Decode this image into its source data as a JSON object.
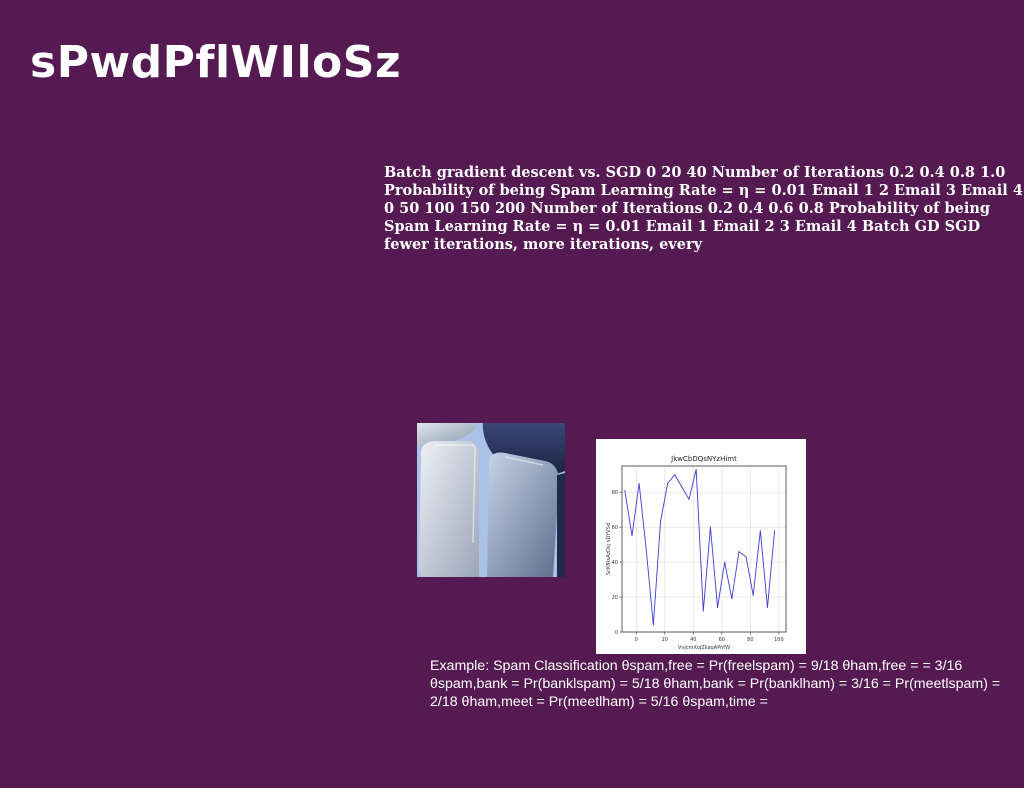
{
  "page": {
    "title": "sPwdPflWIloSz",
    "paragraph1": "Batch gradient descent vs. SGD 0 20 40 Number of Iterations 0.2 0.4 0.8 1.0 Probability of being Spam Learning Rate = η = 0.01 Email 1 2 Email 3 Email 4 0 50 100 150 200 Number of Iterations 0.2 0.4 0.6 0.8 Probability of being Spam Learning Rate = η = 0.01 Email 1 Email 2 3 Email 4 Batch GD SGD fewer iterations, more iterations, every",
    "paragraph2": "Example: Spam Classification θspam,free = Pr(freelspam) = 9/18 θham,free = = 3/16 θspam,bank = Pr(banklspam) = 5/18 θham,bank = Pr(banklham) = 3/16 = Pr(meetlspam) = 2/18 θham,meet = Pr(meetlham) = 5/16 θspam,time ="
  },
  "image": {
    "icon": "abstract-rounded-tiles-image"
  },
  "chart_data": {
    "type": "line",
    "title": "JkwCbDQsNYzHimt",
    "xlabel": "VvJcmXojZkaqAPnfW",
    "ylabel": "ScKfRsAzDsj xDYVSd",
    "xlim": [
      -10,
      105
    ],
    "ylim": [
      0,
      95
    ],
    "x_ticks": [
      0,
      20,
      40,
      60,
      80,
      100
    ],
    "y_ticks": [
      0,
      20,
      40,
      60,
      80
    ],
    "grid": true,
    "line_color": "#3b3bd6",
    "series": [
      {
        "x": [
          -8,
          -3,
          2,
          7,
          12,
          17,
          22,
          27,
          32,
          37,
          42,
          47,
          52,
          57,
          62,
          67,
          72,
          77,
          82,
          87,
          92,
          97
        ],
        "y": [
          81,
          55,
          85,
          47,
          4,
          63,
          85,
          90,
          83,
          76,
          93,
          12,
          60,
          14,
          40,
          19,
          46,
          43,
          21,
          58,
          14,
          58
        ]
      }
    ]
  }
}
